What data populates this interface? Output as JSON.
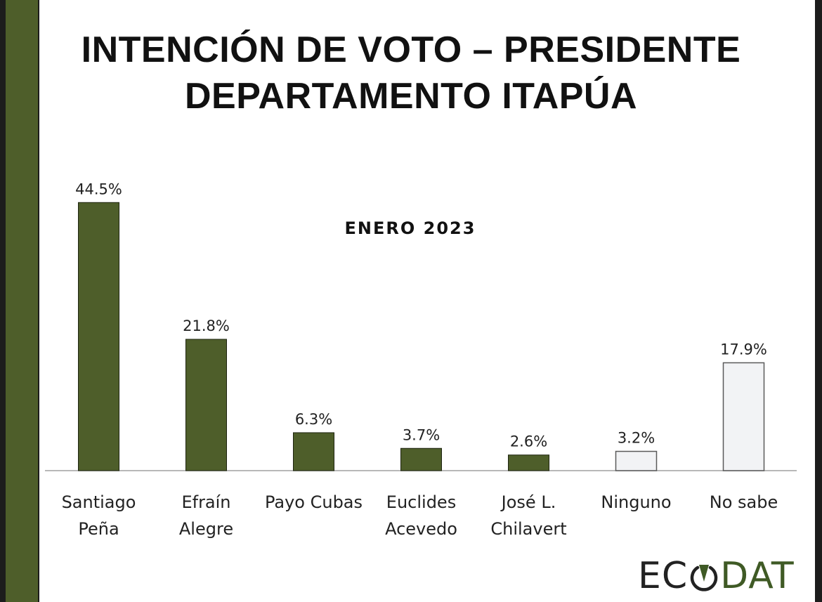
{
  "title_lines": [
    "INTENCIÓN DE VOTO – PRESIDENTE",
    "DEPARTAMENTO ITAPÚA"
  ],
  "logo": {
    "part1": "EC",
    "part2": "DAT"
  },
  "colors": {
    "green_bar": "#4e5e2a",
    "neutral_bar": "#f2f3f5",
    "side_band": "#4e5e2a",
    "logo_accent": "#3f5a25"
  },
  "chart_data": {
    "type": "bar",
    "title": "INTENCIÓN DE VOTO – PRESIDENTE DEPARTAMENTO ITAPÚA",
    "subtitle": "ENERO 2023",
    "categories": [
      [
        "Santiago",
        "Peña"
      ],
      [
        "Efraín",
        "Alegre"
      ],
      [
        "Payo Cubas"
      ],
      [
        "Euclides",
        "Acevedo"
      ],
      [
        "José L.",
        "Chilavert"
      ],
      [
        "Ninguno"
      ],
      [
        "No sabe"
      ]
    ],
    "values": [
      44.5,
      21.8,
      6.3,
      3.7,
      2.6,
      3.2,
      17.9
    ],
    "labels": [
      "44.5%",
      "21.8%",
      "6.3%",
      "3.7%",
      "2.6%",
      "3.2%",
      "17.9%"
    ],
    "bar_style": [
      "green",
      "green",
      "green",
      "green",
      "green",
      "neutral",
      "neutral"
    ],
    "ylim": [
      0,
      45
    ],
    "grid": false,
    "legend": "none"
  }
}
